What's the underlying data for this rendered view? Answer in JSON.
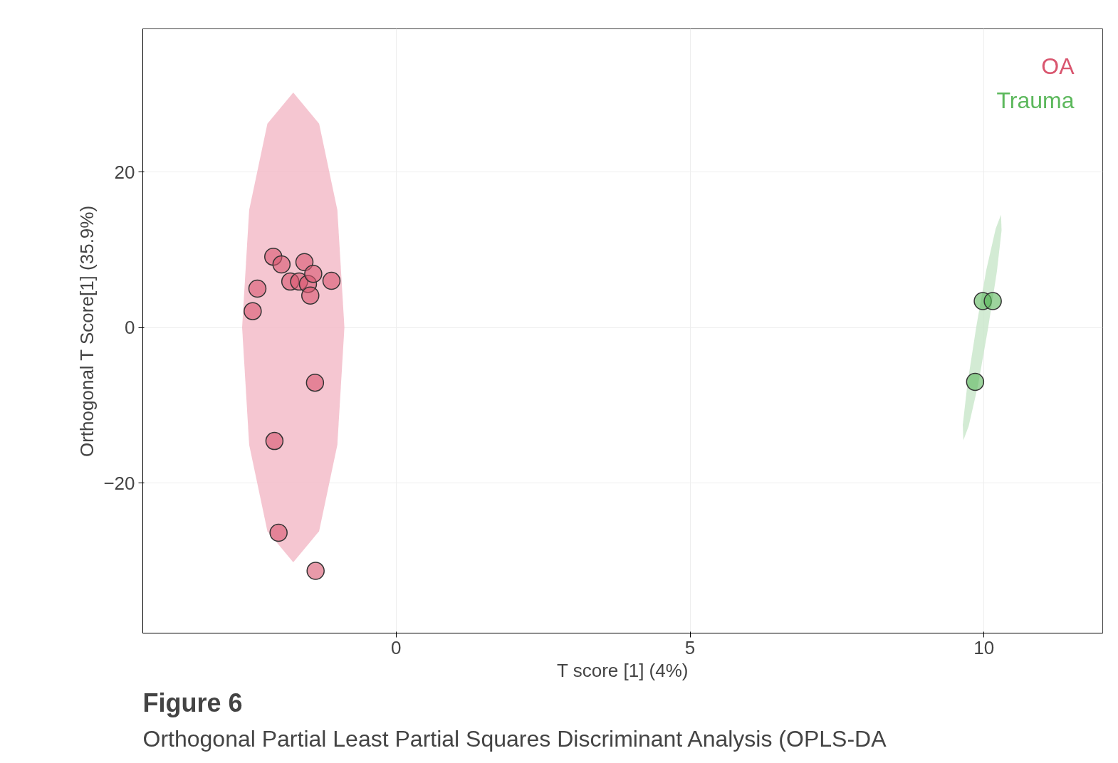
{
  "chart_data": {
    "type": "scatter",
    "xlabel": "T score [1] (4%)",
    "ylabel": "Orthogonal T Score[1] (35.9%)",
    "xlim": [
      -4.31,
      12.02
    ],
    "ylim": [
      -39.3,
      38.4
    ],
    "xticks": [
      0,
      5,
      10
    ],
    "yticks": [
      -20,
      0,
      20
    ],
    "grid": true,
    "annotations": [
      "Figure 6",
      "Orthogonal Partial Least Partial Squares Discriminant Analysis (OPLS-DA"
    ],
    "series": [
      {
        "type": "area",
        "color": "#f2b8c6",
        "x": [
          -0.88,
          -1.0,
          -1.31,
          -1.75,
          -2.19,
          -2.5,
          -2.62,
          -2.5,
          -2.19,
          -1.75,
          -1.31,
          -1.0
        ],
        "values": [
          0,
          15.1,
          26.2,
          30.2,
          26.2,
          15.1,
          0,
          -15.1,
          -26.2,
          -30.2,
          -26.2,
          -15.1
        ]
      },
      {
        "type": "area",
        "color": "#c8e6c9",
        "x": [
          10.29,
          10.3,
          10.22,
          10.07,
          9.9,
          9.74,
          9.65,
          9.64,
          9.72,
          9.87,
          10.04,
          10.2
        ],
        "values": [
          14.5,
          12.5,
          7.2,
          -0.1,
          -7.4,
          -12.7,
          -14.5,
          -12.5,
          -7.2,
          0.1,
          7.4,
          12.7
        ]
      },
      {
        "name": "OA",
        "color": "#d9566f",
        "marker": "circle",
        "x": [
          -2.09,
          -1.95,
          -2.36,
          -2.44,
          -1.8,
          -1.65,
          -1.5,
          -1.56,
          -1.41,
          -1.1,
          -1.46,
          -1.38,
          -2.07,
          -2.0,
          -1.37
        ],
        "values": [
          9.1,
          8.1,
          5.0,
          2.1,
          5.9,
          5.9,
          5.6,
          8.4,
          6.9,
          6.0,
          4.1,
          -7.1,
          -14.6,
          -26.4,
          -31.3
        ]
      },
      {
        "name": "Trauma",
        "color": "#5cb85c",
        "marker": "circle",
        "x": [
          9.98,
          10.15,
          9.85
        ],
        "values": [
          3.4,
          3.4,
          -7.0
        ]
      }
    ]
  }
}
